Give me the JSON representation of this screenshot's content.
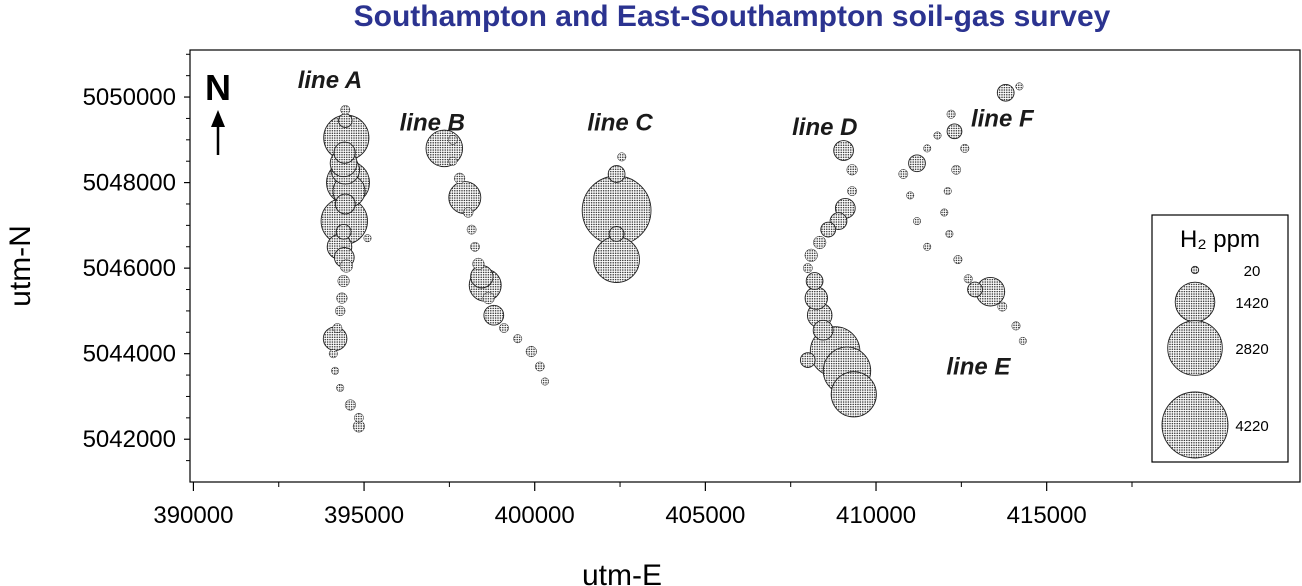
{
  "chart_data": {
    "type": "scatter",
    "title": "Southampton and East-Southampton soil-gas survey",
    "xlabel": "utm-E",
    "ylabel": "utm-N",
    "xlim": [
      389900,
      417500
    ],
    "ylim": [
      5041000,
      5051100
    ],
    "xticks": [
      390000,
      395000,
      400000,
      405000,
      410000,
      415000
    ],
    "xtick_labels": [
      "390000",
      "395000",
      "400000",
      "405000",
      "410000",
      "415000"
    ],
    "yticks": [
      5042000,
      5044000,
      5046000,
      5048000,
      5050000
    ],
    "ytick_labels": [
      "5042000",
      "5044000",
      "5046000",
      "5048000",
      "5050000"
    ],
    "grid": false,
    "north_arrow_label": "N",
    "size_legend": {
      "title": "H₂ ppm",
      "position": "right",
      "entries": [
        {
          "label": "20",
          "value": 20
        },
        {
          "label": "1420",
          "value": 1420
        },
        {
          "label": "2820",
          "value": 2820
        },
        {
          "label": "4220",
          "value": 4220
        }
      ]
    },
    "line_labels": [
      {
        "text": "line A",
        "x": 394000,
        "y": 5050400
      },
      {
        "text": "line B",
        "x": 397000,
        "y": 5049400
      },
      {
        "text": "line C",
        "x": 402500,
        "y": 5049400
      },
      {
        "text": "line D",
        "x": 408500,
        "y": 5049300
      },
      {
        "text": "line F",
        "x": 413700,
        "y": 5049500
      },
      {
        "text": "line E",
        "x": 413000,
        "y": 5043700
      }
    ],
    "series": [
      {
        "name": "line A",
        "points": [
          {
            "x": 394450,
            "y": 5049700,
            "h2": 40
          },
          {
            "x": 394450,
            "y": 5049450,
            "h2": 120
          },
          {
            "x": 394480,
            "y": 5049050,
            "h2": 1900
          },
          {
            "x": 394430,
            "y": 5048700,
            "h2": 350
          },
          {
            "x": 394400,
            "y": 5048450,
            "h2": 600
          },
          {
            "x": 394450,
            "y": 5048300,
            "h2": 700
          },
          {
            "x": 394530,
            "y": 5048000,
            "h2": 1700
          },
          {
            "x": 394560,
            "y": 5047800,
            "h2": 900
          },
          {
            "x": 394450,
            "y": 5047500,
            "h2": 300
          },
          {
            "x": 394420,
            "y": 5047100,
            "h2": 2000
          },
          {
            "x": 394400,
            "y": 5046850,
            "h2": 150
          },
          {
            "x": 394280,
            "y": 5046500,
            "h2": 500
          },
          {
            "x": 394420,
            "y": 5046250,
            "h2": 300
          },
          {
            "x": 394480,
            "y": 5046050,
            "h2": 100
          },
          {
            "x": 394400,
            "y": 5045700,
            "h2": 80
          },
          {
            "x": 394350,
            "y": 5045300,
            "h2": 60
          },
          {
            "x": 394300,
            "y": 5045000,
            "h2": 50
          },
          {
            "x": 394220,
            "y": 5044600,
            "h2": 40
          },
          {
            "x": 394150,
            "y": 5044350,
            "h2": 450
          },
          {
            "x": 394100,
            "y": 5044000,
            "h2": 30
          },
          {
            "x": 394150,
            "y": 5043600,
            "h2": 20
          },
          {
            "x": 394300,
            "y": 5043200,
            "h2": 20
          },
          {
            "x": 394600,
            "y": 5042800,
            "h2": 60
          },
          {
            "x": 394850,
            "y": 5042500,
            "h2": 40
          },
          {
            "x": 394850,
            "y": 5042300,
            "h2": 80
          },
          {
            "x": 395100,
            "y": 5046700,
            "h2": 20
          }
        ]
      },
      {
        "name": "line B",
        "points": [
          {
            "x": 397600,
            "y": 5049000,
            "h2": 40
          },
          {
            "x": 397350,
            "y": 5048800,
            "h2": 1200
          },
          {
            "x": 397600,
            "y": 5048500,
            "h2": 30
          },
          {
            "x": 397800,
            "y": 5048100,
            "h2": 60
          },
          {
            "x": 397950,
            "y": 5047650,
            "h2": 900
          },
          {
            "x": 398050,
            "y": 5047300,
            "h2": 50
          },
          {
            "x": 398150,
            "y": 5046900,
            "h2": 40
          },
          {
            "x": 398250,
            "y": 5046500,
            "h2": 40
          },
          {
            "x": 398350,
            "y": 5046100,
            "h2": 80
          },
          {
            "x": 398450,
            "y": 5045800,
            "h2": 400
          },
          {
            "x": 398550,
            "y": 5045600,
            "h2": 900
          },
          {
            "x": 398650,
            "y": 5045300,
            "h2": 80
          },
          {
            "x": 398800,
            "y": 5044900,
            "h2": 300
          },
          {
            "x": 399100,
            "y": 5044600,
            "h2": 40
          },
          {
            "x": 399500,
            "y": 5044350,
            "h2": 30
          },
          {
            "x": 399900,
            "y": 5044050,
            "h2": 60
          },
          {
            "x": 400150,
            "y": 5043700,
            "h2": 40
          },
          {
            "x": 400300,
            "y": 5043350,
            "h2": 20
          }
        ]
      },
      {
        "name": "line C",
        "points": [
          {
            "x": 402550,
            "y": 5048600,
            "h2": 30
          },
          {
            "x": 402400,
            "y": 5048200,
            "h2": 200
          },
          {
            "x": 402400,
            "y": 5047350,
            "h2": 4600
          },
          {
            "x": 402400,
            "y": 5046800,
            "h2": 150
          },
          {
            "x": 402400,
            "y": 5046200,
            "h2": 1950
          }
        ]
      },
      {
        "name": "line D",
        "points": [
          {
            "x": 409050,
            "y": 5048750,
            "h2": 300
          },
          {
            "x": 409300,
            "y": 5048300,
            "h2": 60
          },
          {
            "x": 409300,
            "y": 5047800,
            "h2": 40
          },
          {
            "x": 409100,
            "y": 5047400,
            "h2": 300
          },
          {
            "x": 408900,
            "y": 5047100,
            "h2": 200
          },
          {
            "x": 408600,
            "y": 5046900,
            "h2": 150
          },
          {
            "x": 408350,
            "y": 5046600,
            "h2": 100
          },
          {
            "x": 408100,
            "y": 5046300,
            "h2": 100
          },
          {
            "x": 408000,
            "y": 5046000,
            "h2": 40
          },
          {
            "x": 408200,
            "y": 5045700,
            "h2": 200
          },
          {
            "x": 408250,
            "y": 5045300,
            "h2": 400
          },
          {
            "x": 408350,
            "y": 5044900,
            "h2": 500
          },
          {
            "x": 408450,
            "y": 5044550,
            "h2": 300
          },
          {
            "x": 408800,
            "y": 5044050,
            "h2": 2300
          },
          {
            "x": 409150,
            "y": 5043600,
            "h2": 2100
          },
          {
            "x": 409350,
            "y": 5043050,
            "h2": 1900
          },
          {
            "x": 408000,
            "y": 5043850,
            "h2": 150
          }
        ]
      },
      {
        "name": "line E",
        "points": [
          {
            "x": 412200,
            "y": 5049600,
            "h2": 30
          },
          {
            "x": 412300,
            "y": 5049200,
            "h2": 150
          },
          {
            "x": 412600,
            "y": 5048800,
            "h2": 30
          },
          {
            "x": 412350,
            "y": 5048300,
            "h2": 40
          },
          {
            "x": 412100,
            "y": 5047800,
            "h2": 20
          },
          {
            "x": 412000,
            "y": 5047300,
            "h2": 20
          },
          {
            "x": 412150,
            "y": 5046800,
            "h2": 20
          },
          {
            "x": 412400,
            "y": 5046200,
            "h2": 30
          },
          {
            "x": 412700,
            "y": 5045750,
            "h2": 30
          },
          {
            "x": 412900,
            "y": 5045500,
            "h2": 150
          },
          {
            "x": 413350,
            "y": 5045450,
            "h2": 700
          },
          {
            "x": 413700,
            "y": 5045100,
            "h2": 40
          },
          {
            "x": 414100,
            "y": 5044650,
            "h2": 30
          },
          {
            "x": 414300,
            "y": 5044300,
            "h2": 20
          }
        ]
      },
      {
        "name": "line F",
        "points": [
          {
            "x": 413800,
            "y": 5050100,
            "h2": 200
          },
          {
            "x": 414200,
            "y": 5050250,
            "h2": 20
          },
          {
            "x": 411200,
            "y": 5048450,
            "h2": 200
          },
          {
            "x": 410800,
            "y": 5048200,
            "h2": 40
          },
          {
            "x": 411500,
            "y": 5048800,
            "h2": 20
          },
          {
            "x": 411800,
            "y": 5049100,
            "h2": 20
          },
          {
            "x": 411000,
            "y": 5047700,
            "h2": 20
          },
          {
            "x": 411200,
            "y": 5047100,
            "h2": 20
          },
          {
            "x": 411500,
            "y": 5046500,
            "h2": 20
          }
        ]
      }
    ]
  }
}
